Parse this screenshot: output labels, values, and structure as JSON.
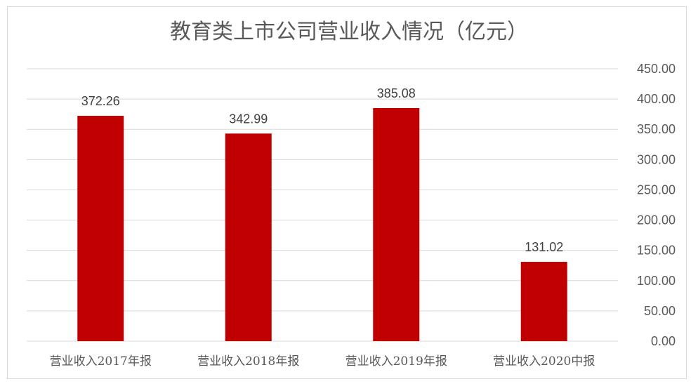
{
  "chart_data": {
    "type": "bar",
    "title": "教育类上市公司营业收入情况（亿元）",
    "categories": [
      "营业收入2017年报",
      "营业收入2018年报",
      "营业收入2019年报",
      "营业收入2020中报"
    ],
    "values": [
      372.26,
      342.99,
      385.08,
      131.02
    ],
    "data_labels": [
      "372.26",
      "342.99",
      "385.08",
      "131.02"
    ],
    "y_ticks": [
      "0.00",
      "50.00",
      "100.00",
      "150.00",
      "200.00",
      "250.00",
      "300.00",
      "350.00",
      "400.00",
      "450.00"
    ],
    "ylim": [
      0,
      450
    ],
    "y_axis_position": "right",
    "grid": true,
    "bar_color": "#c00000",
    "grid_color": "#d9d9d9"
  }
}
